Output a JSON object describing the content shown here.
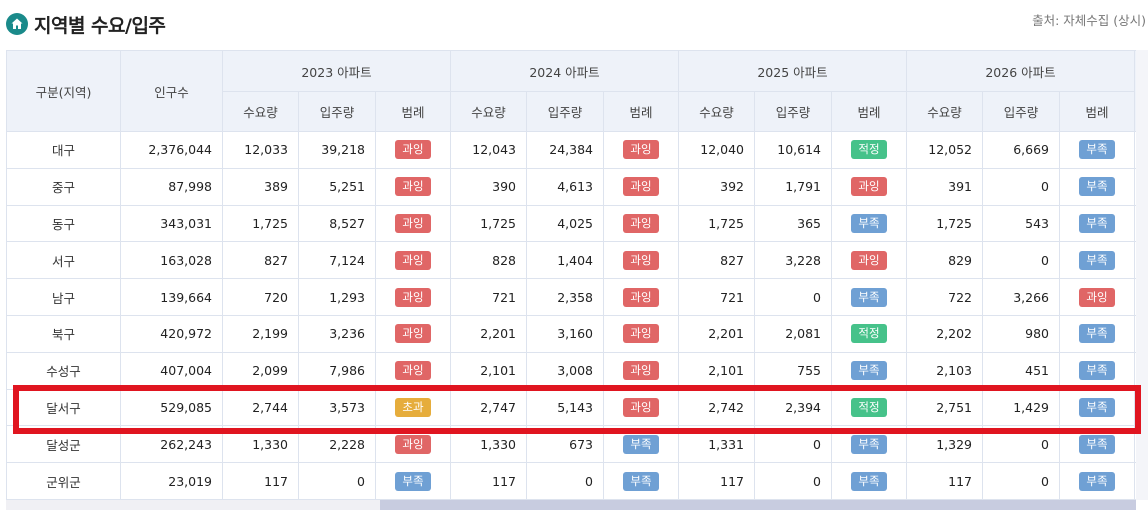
{
  "header": {
    "title": "지역별 수요/입주",
    "source": "출처: 자체수집 (상시)"
  },
  "columns": {
    "region": "구분(지역)",
    "population": "인구수",
    "years": [
      "2023 아파트",
      "2024 아파트",
      "2025 아파트",
      "2026 아파트"
    ],
    "sub": [
      "수요량",
      "입주량",
      "범례"
    ]
  },
  "colors": {
    "과잉": "#e06666",
    "부족": "#6fa0d4",
    "적정": "#46c28a",
    "초과": "#e6ad3c"
  },
  "rows": [
    {
      "region": "대구",
      "population": "2,376,044",
      "years": [
        [
          "12,033",
          "39,218",
          "과잉"
        ],
        [
          "12,043",
          "24,384",
          "과잉"
        ],
        [
          "12,040",
          "10,614",
          "적정"
        ],
        [
          "12,052",
          "6,669",
          "부족"
        ]
      ]
    },
    {
      "region": "중구",
      "population": "87,998",
      "years": [
        [
          "389",
          "5,251",
          "과잉"
        ],
        [
          "390",
          "4,613",
          "과잉"
        ],
        [
          "392",
          "1,791",
          "과잉"
        ],
        [
          "391",
          "0",
          "부족"
        ]
      ]
    },
    {
      "region": "동구",
      "population": "343,031",
      "years": [
        [
          "1,725",
          "8,527",
          "과잉"
        ],
        [
          "1,725",
          "4,025",
          "과잉"
        ],
        [
          "1,725",
          "365",
          "부족"
        ],
        [
          "1,725",
          "543",
          "부족"
        ]
      ]
    },
    {
      "region": "서구",
      "population": "163,028",
      "years": [
        [
          "827",
          "7,124",
          "과잉"
        ],
        [
          "828",
          "1,404",
          "과잉"
        ],
        [
          "827",
          "3,228",
          "과잉"
        ],
        [
          "829",
          "0",
          "부족"
        ]
      ]
    },
    {
      "region": "남구",
      "population": "139,664",
      "years": [
        [
          "720",
          "1,293",
          "과잉"
        ],
        [
          "721",
          "2,358",
          "과잉"
        ],
        [
          "721",
          "0",
          "부족"
        ],
        [
          "722",
          "3,266",
          "과잉"
        ]
      ]
    },
    {
      "region": "북구",
      "population": "420,972",
      "years": [
        [
          "2,199",
          "3,236",
          "과잉"
        ],
        [
          "2,201",
          "3,160",
          "과잉"
        ],
        [
          "2,201",
          "2,081",
          "적정"
        ],
        [
          "2,202",
          "980",
          "부족"
        ]
      ]
    },
    {
      "region": "수성구",
      "population": "407,004",
      "years": [
        [
          "2,099",
          "7,986",
          "과잉"
        ],
        [
          "2,101",
          "3,008",
          "과잉"
        ],
        [
          "2,101",
          "755",
          "부족"
        ],
        [
          "2,103",
          "451",
          "부족"
        ]
      ]
    },
    {
      "region": "달서구",
      "population": "529,085",
      "years": [
        [
          "2,744",
          "3,573",
          "초과"
        ],
        [
          "2,747",
          "5,143",
          "과잉"
        ],
        [
          "2,742",
          "2,394",
          "적정"
        ],
        [
          "2,751",
          "1,429",
          "부족"
        ]
      ]
    },
    {
      "region": "달성군",
      "population": "262,243",
      "years": [
        [
          "1,330",
          "2,228",
          "과잉"
        ],
        [
          "1,330",
          "673",
          "부족"
        ],
        [
          "1,331",
          "0",
          "부족"
        ],
        [
          "1,329",
          "0",
          "부족"
        ]
      ]
    },
    {
      "region": "군위군",
      "population": "23,019",
      "years": [
        [
          "117",
          "0",
          "부족"
        ],
        [
          "117",
          "0",
          "부족"
        ],
        [
          "117",
          "0",
          "부족"
        ],
        [
          "117",
          "0",
          "부족"
        ]
      ]
    }
  ],
  "highlighted_row": 7
}
